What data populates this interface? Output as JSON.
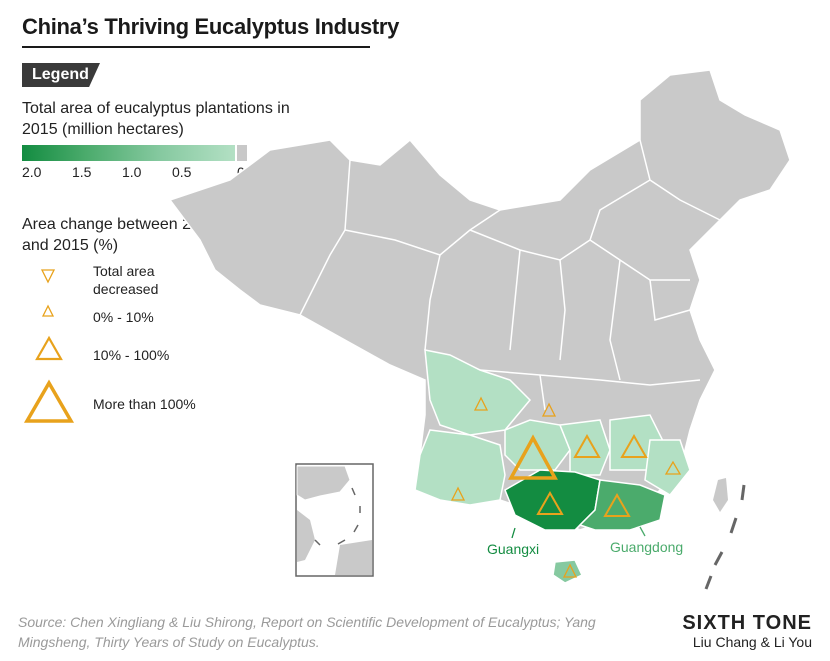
{
  "title": "China’s Thriving Eucalyptus Industry",
  "legend": {
    "tag": "Legend",
    "area_label": "Total area of eucalyptus plantations in 2015 (million hectares)",
    "ticks": [
      "2.0",
      "1.5",
      "1.0",
      "0.5",
      "0"
    ],
    "change_label": "Area change between 2010 and 2015 (%)",
    "symbols": [
      "Total area decreased",
      "0% - 10%",
      "10% - 100%",
      "More than 100%"
    ]
  },
  "labels": {
    "guangxi": "Guangxi",
    "guangdong": "Guangdong"
  },
  "source": "Source:  Chen Xingliang & Liu Shirong, Report on Scientific Development of Eucalyptus; Yang Mingsheng, Thirty Years of Study on Eucalyptus.",
  "brand": "SIXTH TONE",
  "byline": "Liu Chang & Li You",
  "colors": {
    "gradient_high": "#138c41",
    "gradient_low": "#b3e0c4",
    "no_data": "#c8c8c8",
    "triangle": "#e8a21c"
  }
}
